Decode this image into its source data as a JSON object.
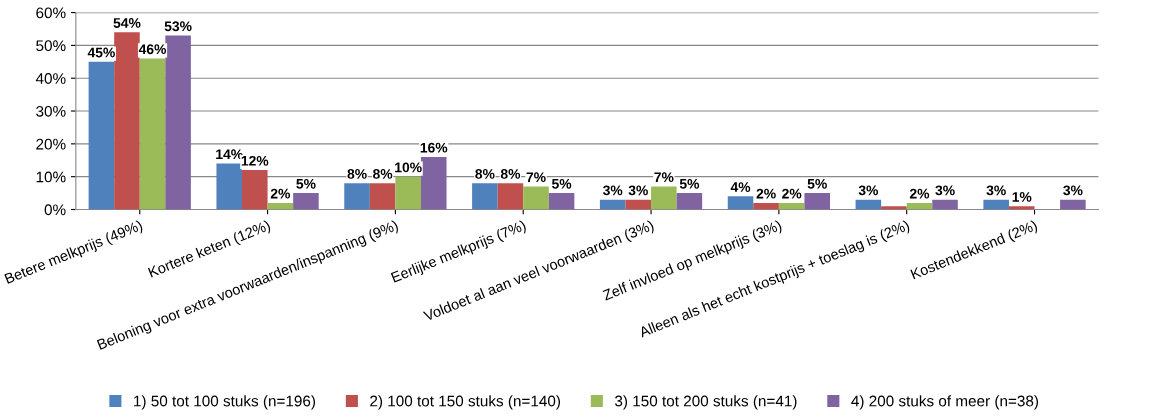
{
  "chart_data": {
    "type": "bar",
    "categories": [
      "Betere melkprijs (49%)",
      "Kortere keten (12%)",
      "Beloning voor extra voorwaarden/inspanning (9%)",
      "Eerlijke melkprijs (7%)",
      "Voldoet al aan veel voorwaarden (3%)",
      "Zelf invloed op melkprijs (3%)",
      "Alleen als het echt kostprijs + toeslag is (2%)",
      "Kostendekkend (2%)"
    ],
    "series": [
      {
        "name": "1) 50 tot 100 stuks (n=196)",
        "color": "#4f81bd",
        "values": [
          45,
          14,
          8,
          8,
          3,
          4,
          3,
          3
        ],
        "value_labels": [
          "45%",
          "14%",
          "8%",
          "8%",
          "3%",
          "4%",
          "3%",
          "3%"
        ]
      },
      {
        "name": "2) 100 tot 150 stuks (n=140)",
        "color": "#c0504d",
        "values": [
          54,
          12,
          8,
          8,
          3,
          2,
          1,
          1
        ],
        "value_labels": [
          "54%",
          "12%",
          "8%",
          "8%",
          "3%",
          "2%",
          null,
          "1%"
        ]
      },
      {
        "name": "3) 150 tot 200 stuks (n=41)",
        "color": "#9bbb59",
        "values": [
          46,
          2,
          10,
          7,
          7,
          2,
          2,
          null
        ],
        "value_labels": [
          "46%",
          "2%",
          "10%",
          "7%",
          "7%",
          "2%",
          "2%",
          null
        ]
      },
      {
        "name": "4) 200 stuks of meer (n=38)",
        "color": "#8064a2",
        "values": [
          53,
          5,
          16,
          5,
          5,
          5,
          3,
          3
        ],
        "value_labels": [
          "53%",
          "5%",
          "16%",
          "5%",
          "5%",
          "5%",
          "3%",
          "3%"
        ]
      }
    ],
    "ylim": [
      0,
      60
    ],
    "yticks": [
      {
        "value": 0,
        "label": "0%"
      },
      {
        "value": 10,
        "label": "10%"
      },
      {
        "value": 20,
        "label": "20%"
      },
      {
        "value": 30,
        "label": "30%"
      },
      {
        "value": 40,
        "label": "40%"
      },
      {
        "value": 50,
        "label": "50%"
      },
      {
        "value": 60,
        "label": "60%"
      }
    ],
    "grid": "y",
    "legend": "bottom"
  }
}
